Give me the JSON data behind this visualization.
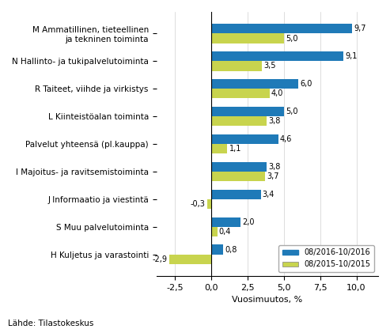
{
  "categories": [
    "M Ammatillinen, tieteellinen\nja tekninen toiminta",
    "N Hallinto- ja tukipalvelutoiminta",
    "R Taiteet, viihde ja virkistys",
    "L Kiinteistöalan toiminta",
    "Palvelut yhteensä (pl.kauppa)",
    "I Majoitus- ja ravitsemistoiminta",
    "J Informaatio ja viestintä",
    "S Muu palvelutoiminta",
    "H Kuljetus ja varastointi"
  ],
  "values_2016": [
    9.7,
    9.1,
    6.0,
    5.0,
    4.6,
    3.8,
    3.4,
    2.0,
    0.8
  ],
  "values_2015": [
    5.0,
    3.5,
    4.0,
    3.8,
    1.1,
    3.7,
    -0.3,
    0.4,
    -2.9
  ],
  "color_2016": "#1f7ab8",
  "color_2015": "#c8d44e",
  "xlim": [
    -3.8,
    11.5
  ],
  "xticks": [
    -2.5,
    0.0,
    2.5,
    5.0,
    7.5,
    10.0
  ],
  "xtick_labels": [
    "-2,5",
    "0,0",
    "2,5",
    "5,0",
    "7,5",
    "10,0"
  ],
  "xlabel": "Vuosimuutos, %",
  "legend_2016": "08/2016-10/2016",
  "legend_2015": "08/2015-10/2015",
  "source": "Lähde: Tilastokeskus",
  "bar_height": 0.35
}
